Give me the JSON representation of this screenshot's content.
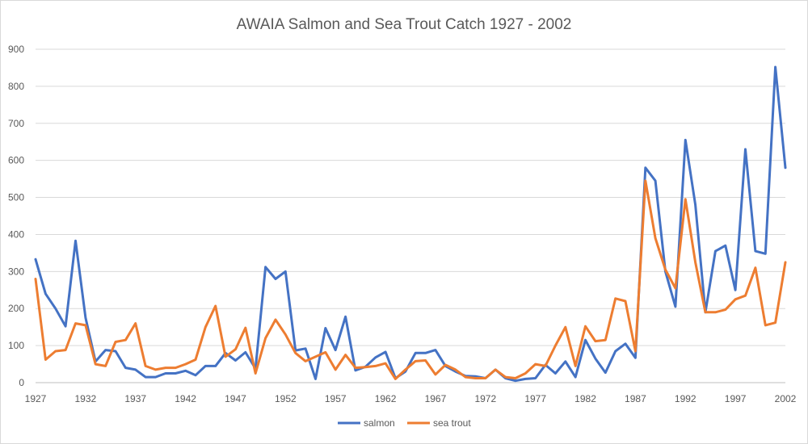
{
  "chart_data": {
    "type": "line",
    "title": "AWAIA Salmon and Sea Trout Catch 1927 - 2002",
    "xlabel": "",
    "ylabel": "",
    "ylim": [
      0,
      900
    ],
    "yticks": [
      0,
      100,
      200,
      300,
      400,
      500,
      600,
      700,
      800,
      900
    ],
    "xticks": [
      1927,
      1932,
      1937,
      1942,
      1947,
      1952,
      1957,
      1962,
      1967,
      1972,
      1977,
      1982,
      1987,
      1992,
      1997,
      2002
    ],
    "grid": "horizontal",
    "legend_position": "bottom",
    "x": [
      1927,
      1928,
      1929,
      1930,
      1931,
      1932,
      1933,
      1934,
      1935,
      1936,
      1937,
      1938,
      1939,
      1940,
      1941,
      1942,
      1943,
      1944,
      1945,
      1946,
      1947,
      1948,
      1949,
      1950,
      1951,
      1952,
      1953,
      1954,
      1955,
      1956,
      1957,
      1958,
      1959,
      1960,
      1961,
      1962,
      1963,
      1964,
      1965,
      1966,
      1967,
      1968,
      1969,
      1970,
      1971,
      1972,
      1973,
      1974,
      1975,
      1976,
      1977,
      1978,
      1979,
      1980,
      1981,
      1982,
      1983,
      1984,
      1985,
      1986,
      1987,
      1988,
      1989,
      1990,
      1991,
      1992,
      1993,
      1994,
      1995,
      1996,
      1997,
      1998,
      1999,
      2000,
      2001,
      2002
    ],
    "series": [
      {
        "name": "salmon",
        "color": "#4472c4",
        "values": [
          333,
          240,
          200,
          152,
          383,
          175,
          57,
          88,
          85,
          40,
          35,
          15,
          15,
          25,
          25,
          32,
          20,
          45,
          45,
          80,
          60,
          82,
          38,
          312,
          280,
          300,
          87,
          92,
          10,
          147,
          88,
          178,
          33,
          43,
          68,
          83,
          12,
          30,
          80,
          80,
          88,
          45,
          30,
          18,
          17,
          12,
          35,
          12,
          5,
          10,
          12,
          48,
          25,
          57,
          15,
          115,
          65,
          27,
          85,
          105,
          67,
          580,
          545,
          300,
          205,
          655,
          480,
          190,
          355,
          370,
          250,
          630,
          355,
          348,
          852,
          580
        ]
      },
      {
        "name": "sea trout",
        "color": "#ed7d31",
        "values": [
          280,
          62,
          85,
          88,
          160,
          155,
          50,
          45,
          110,
          115,
          160,
          45,
          35,
          40,
          40,
          50,
          62,
          150,
          207,
          70,
          90,
          148,
          25,
          120,
          170,
          130,
          80,
          58,
          70,
          82,
          35,
          75,
          40,
          42,
          45,
          52,
          10,
          35,
          58,
          60,
          22,
          48,
          35,
          15,
          12,
          12,
          35,
          15,
          12,
          25,
          50,
          45,
          100,
          150,
          45,
          152,
          112,
          115,
          227,
          220,
          85,
          545,
          390,
          305,
          255,
          495,
          325,
          190,
          190,
          197,
          225,
          235,
          310,
          155,
          162,
          325
        ]
      }
    ]
  }
}
